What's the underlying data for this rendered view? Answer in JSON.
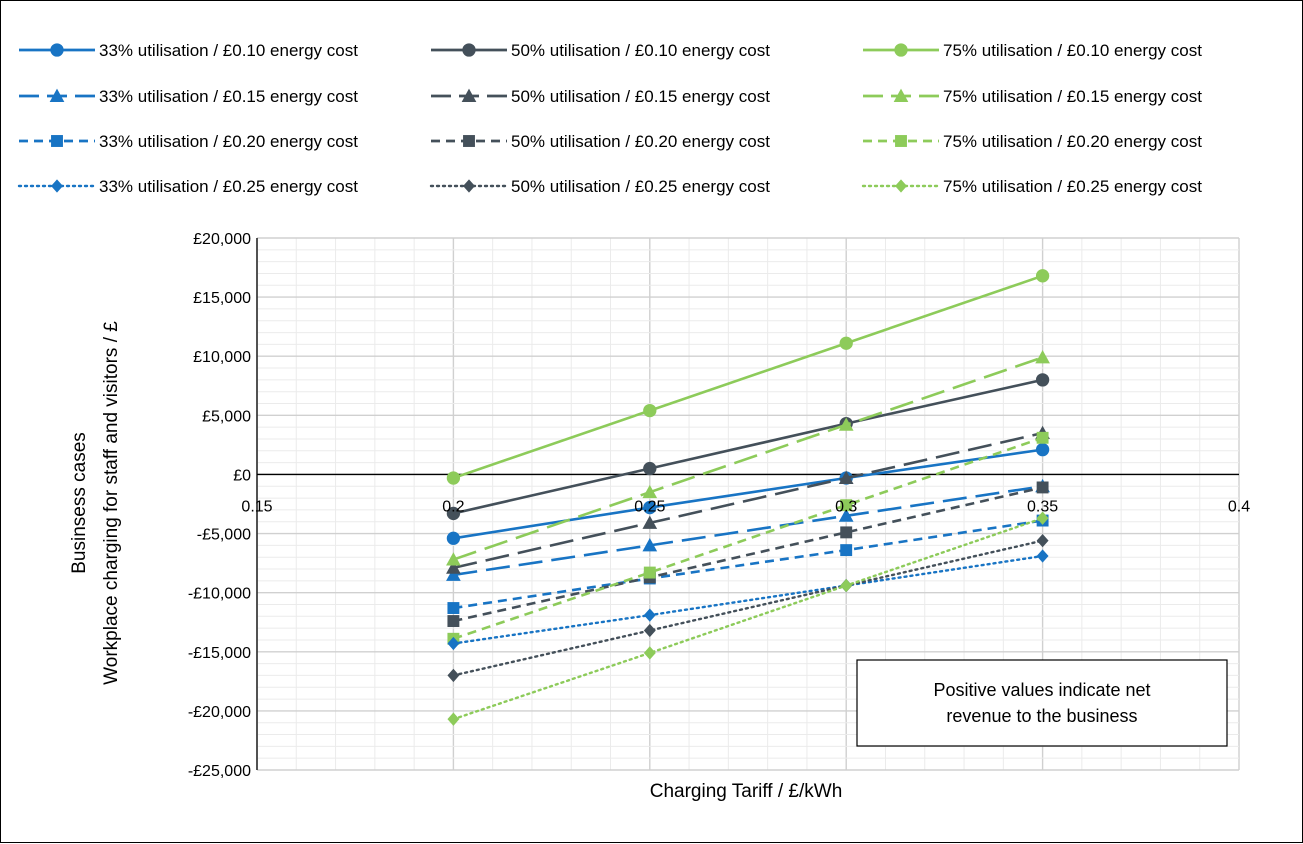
{
  "chart_data": {
    "type": "line",
    "xlabel": "Charging Tariff / £/kWh",
    "ylabel_lines": [
      "Businsess cases",
      "Workplace charging for  staff and visitors / £"
    ],
    "xlim": [
      0.15,
      0.4
    ],
    "ylim": [
      -25000,
      20000
    ],
    "x_ticks": [
      0.15,
      0.2,
      0.25,
      0.3,
      0.35,
      0.4
    ],
    "x_tick_labels": [
      "0.15",
      "0.2",
      "0.25",
      "0.3",
      "0.35",
      "0.4"
    ],
    "y_ticks": [
      20000,
      15000,
      10000,
      5000,
      0,
      -5000,
      -10000,
      -15000,
      -20000,
      -25000
    ],
    "y_tick_labels": [
      "£20,000",
      "£15,000",
      "£10,000",
      "£5,000",
      "£0",
      "-£5,000",
      "-£10,000",
      "-£15,000",
      "-£20,000",
      "-£25,000"
    ],
    "grid": true,
    "legend_position": "top",
    "annotation": "Positive values indicate net revenue to the business",
    "x": [
      0.2,
      0.25,
      0.3,
      0.35
    ],
    "series": [
      {
        "name": "33% utilisation / £0.10 energy cost",
        "values": [
          -5400,
          -2800,
          -300,
          2100
        ],
        "color": "#1874C4",
        "dash": "solid",
        "marker": "circle"
      },
      {
        "name": "50% utilisation / £0.10 energy cost",
        "values": [
          -3300,
          500,
          4300,
          8000
        ],
        "color": "#44505A",
        "dash": "solid",
        "marker": "circle"
      },
      {
        "name": "75% utilisation / £0.10 energy cost",
        "values": [
          -300,
          5400,
          11100,
          16800
        ],
        "color": "#8DCB5A",
        "dash": "solid",
        "marker": "circle"
      },
      {
        "name": "33% utilisation / £0.15 energy cost",
        "values": [
          -8500,
          -6000,
          -3500,
          -1000
        ],
        "color": "#1874C4",
        "dash": "longdash",
        "marker": "triangle"
      },
      {
        "name": "50% utilisation / £0.15 energy cost",
        "values": [
          -7900,
          -4100,
          -300,
          3500
        ],
        "color": "#44505A",
        "dash": "longdash",
        "marker": "triangle"
      },
      {
        "name": "75% utilisation / £0.15 energy cost",
        "values": [
          -7200,
          -1500,
          4200,
          9900
        ],
        "color": "#8DCB5A",
        "dash": "longdash",
        "marker": "triangle"
      },
      {
        "name": "33% utilisation / £0.20 energy cost",
        "values": [
          -11300,
          -8800,
          -6400,
          -3900
        ],
        "color": "#1874C4",
        "dash": "dash",
        "marker": "square"
      },
      {
        "name": "50% utilisation / £0.20 energy cost",
        "values": [
          -12400,
          -8700,
          -4900,
          -1100
        ],
        "color": "#44505A",
        "dash": "dash",
        "marker": "square"
      },
      {
        "name": "75% utilisation / £0.20 energy cost",
        "values": [
          -13900,
          -8300,
          -2600,
          3100
        ],
        "color": "#8DCB5A",
        "dash": "dash",
        "marker": "square"
      },
      {
        "name": "33% utilisation / £0.25 energy cost",
        "values": [
          -14300,
          -11900,
          -9400,
          -6900
        ],
        "color": "#1874C4",
        "dash": "dot",
        "marker": "diamond"
      },
      {
        "name": "50% utilisation / £0.25 energy cost",
        "values": [
          -17000,
          -13200,
          -9400,
          -5600
        ],
        "color": "#44505A",
        "dash": "dot",
        "marker": "diamond"
      },
      {
        "name": "75% utilisation / £0.25 energy cost",
        "values": [
          -20700,
          -15100,
          -9400,
          -3700
        ],
        "color": "#8DCB5A",
        "dash": "dot",
        "marker": "diamond"
      }
    ]
  }
}
